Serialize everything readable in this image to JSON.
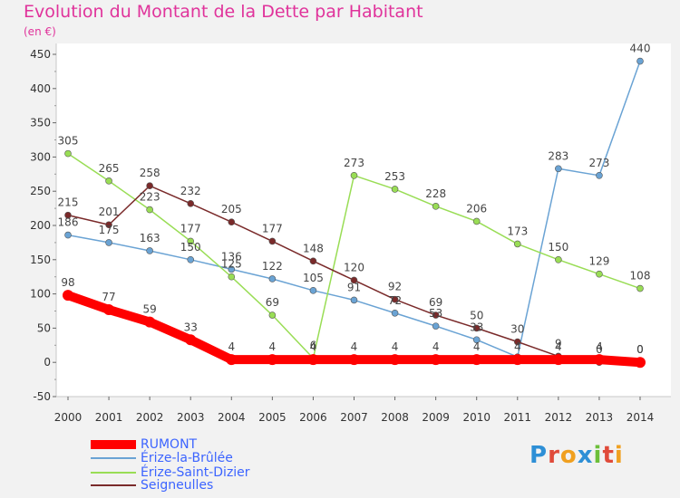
{
  "title": "Evolution du Montant de la Dette par Habitant",
  "unit_label": "(en €)",
  "logo_text": "Proxiti",
  "colors": {
    "title": "#e0339b",
    "axis": "#333333",
    "legend_text": "#3c64ff",
    "background": "#f2f2f2"
  },
  "chart_data": {
    "type": "line",
    "x": [
      "2000",
      "2001",
      "2002",
      "2003",
      "2004",
      "2005",
      "2006",
      "2007",
      "2008",
      "2009",
      "2010",
      "2011",
      "2012",
      "2013",
      "2014"
    ],
    "ylim": [
      -50,
      450
    ],
    "yticks": [
      -50,
      0,
      50,
      100,
      150,
      200,
      250,
      300,
      350,
      400,
      450
    ],
    "grid": false,
    "legend_position": "bottom-left",
    "series": [
      {
        "name": "RUMONT",
        "color": "#ff0000",
        "width": 10,
        "values": [
          98,
          77,
          59,
          33,
          4,
          4,
          4,
          4,
          4,
          4,
          4,
          4,
          4,
          4,
          0
        ],
        "labels": [
          "98",
          "77",
          "59",
          "33",
          "4",
          "4",
          "4",
          "4",
          "4",
          "4",
          "4",
          "4",
          "4",
          "4",
          "0"
        ]
      },
      {
        "name": "Érize-la-Brûlée",
        "color": "#6aa3d4",
        "width": 1.5,
        "values": [
          186,
          175,
          163,
          150,
          136,
          122,
          105,
          91,
          72,
          53,
          33,
          8,
          283,
          273,
          440
        ],
        "labels": [
          "186",
          "175",
          "163",
          "150",
          "136",
          "122",
          "105",
          "91",
          "72",
          "53",
          "33",
          "",
          "283",
          "273",
          "440"
        ]
      },
      {
        "name": "Érize-Saint-Dizier",
        "color": "#99dd55",
        "width": 1.5,
        "values": [
          305,
          265,
          223,
          177,
          125,
          69,
          6,
          273,
          253,
          228,
          206,
          173,
          150,
          129,
          108
        ],
        "labels": [
          "305",
          "265",
          "223",
          "177",
          "125",
          "69",
          "6",
          "273",
          "253",
          "228",
          "206",
          "173",
          "150",
          "129",
          "108"
        ]
      },
      {
        "name": "Seigneulles",
        "color": "#7a2a2a",
        "width": 1.5,
        "values": [
          215,
          201,
          258,
          232,
          205,
          177,
          148,
          120,
          92,
          69,
          50,
          30,
          9,
          0,
          0
        ],
        "labels": [
          "215",
          "201",
          "258",
          "232",
          "205",
          "177",
          "148",
          "120",
          "92",
          "69",
          "50",
          "30",
          "9",
          "0",
          "0"
        ]
      }
    ]
  }
}
